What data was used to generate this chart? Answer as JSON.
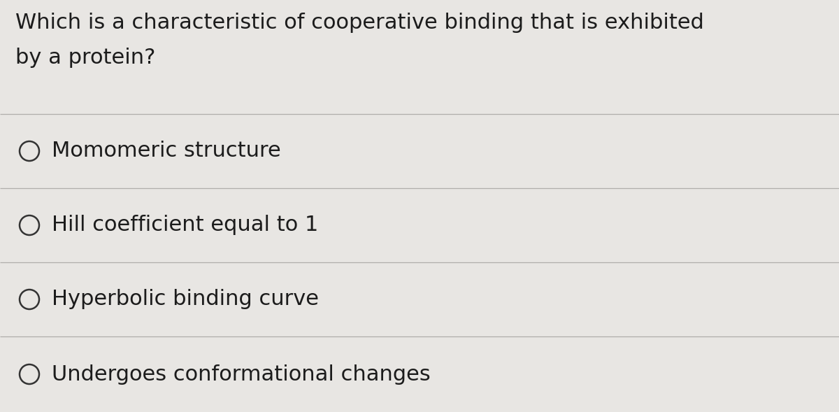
{
  "background_color": "#e8e6e3",
  "question_line1": "Which is a characteristic of cooperative binding that is exhibited",
  "question_line2": "by a protein?",
  "options": [
    "Momomeric structure",
    "Hill coefficient equal to 1",
    "Hyperbolic binding curve",
    "Undergoes conformational changes"
  ],
  "text_color": "#1c1c1c",
  "line_color": "#b0aeab",
  "circle_color": "#333333",
  "question_fontsize": 22,
  "option_fontsize": 22,
  "figure_width": 12.0,
  "figure_height": 5.89,
  "dpi": 100
}
